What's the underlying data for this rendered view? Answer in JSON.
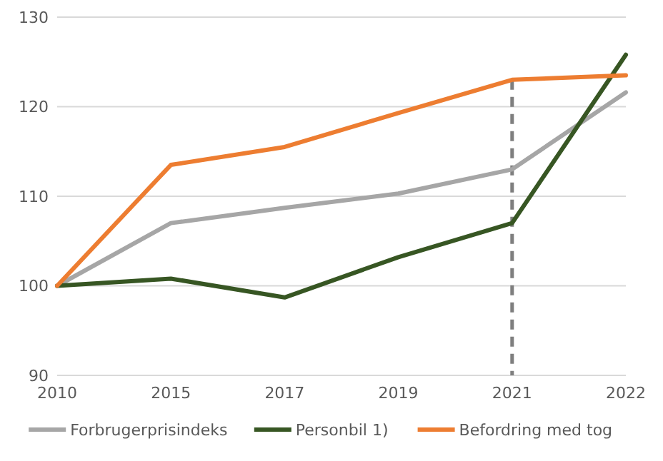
{
  "chart_data": {
    "type": "line",
    "categories": [
      "2010",
      "2015",
      "2017",
      "2019",
      "2021",
      "2022"
    ],
    "series": [
      {
        "name": "Forbrugerprisindeks",
        "color": "#a6a6a6",
        "values": [
          100,
          107.0,
          108.7,
          110.3,
          113.0,
          121.6
        ]
      },
      {
        "name": "Personbil 1)",
        "color": "#375623",
        "values": [
          100,
          100.8,
          98.7,
          103.2,
          107.0,
          125.8
        ]
      },
      {
        "name": "Befordring med tog",
        "color": "#ed7d31",
        "values": [
          100,
          113.5,
          115.5,
          119.3,
          123.0,
          123.5
        ]
      }
    ],
    "ylim": [
      90,
      130
    ],
    "yticks": [
      90,
      100,
      110,
      120,
      130
    ],
    "grid": "y",
    "legend": "bottom",
    "marker": "none",
    "line_style": "solid",
    "ref_lines": [
      {
        "axis": "x",
        "value": "2021",
        "color": "#7f7f7f",
        "line_style": "dashed"
      }
    ]
  }
}
